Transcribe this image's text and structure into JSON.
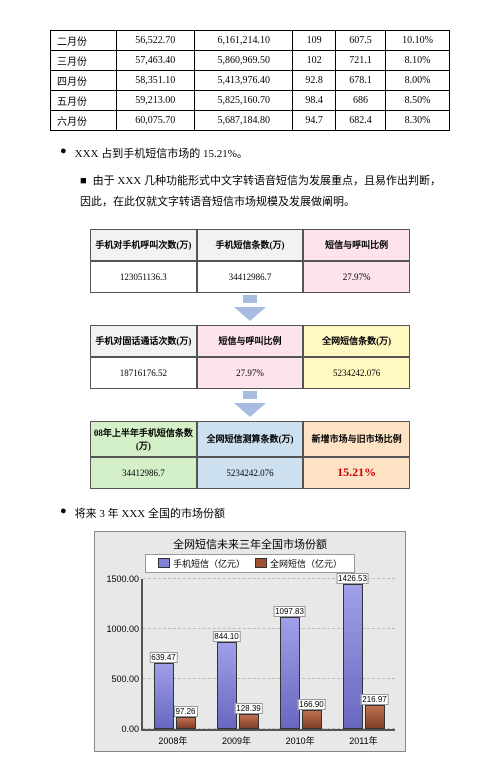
{
  "table": {
    "rows": [
      [
        "二月份",
        "56,522.70",
        "6,161,214.10",
        "109",
        "607.5",
        "10.10%"
      ],
      [
        "三月份",
        "57,463.40",
        "5,860,969.50",
        "102",
        "721.1",
        "8.10%"
      ],
      [
        "四月份",
        "58,351.10",
        "5,413,976.40",
        "92.8",
        "678.1",
        "8.00%"
      ],
      [
        "五月份",
        "59,213.00",
        "5,825,160.70",
        "98.4",
        "686",
        "8.50%"
      ],
      [
        "六月份",
        "60,075.70",
        "5,687,184.80",
        "94.7",
        "682.4",
        "8.30%"
      ]
    ]
  },
  "bullet1_a": "XXX 占到手机短信市场的 15.21%。",
  "bullet2": "由于 XXX 几种功能形式中文字转语音短信为发展重点，且易作出判断，因此，在此仅就文字转语音短信市场规模及发展做阐明。",
  "flow": {
    "r1h": [
      "手机对手机呼叫次数(万)",
      "手机短信条数(万)",
      "短信与呼叫比例"
    ],
    "r1d": [
      "123051136.3",
      "34412986.7",
      "27.97%"
    ],
    "r2h": [
      "手机对固话通话次数(万)",
      "短信与呼叫比例",
      "全网短信条数(万)"
    ],
    "r2d": [
      "18716176.52",
      "27.97%",
      "5234242.076"
    ],
    "r3h": [
      "08年上半年手机短信条数(万)",
      "全网短信测算条数(万)",
      "新增市场与旧市场比例"
    ],
    "r3d": [
      "34412986.7",
      "5234242.076",
      "15.21%"
    ]
  },
  "bullet3": "将来 3 年 XXX 全国的市场份额",
  "chart": {
    "title": "全网短信未来三年全国市场份额",
    "legend": [
      "手机短信（亿元）",
      "全网短信（亿元）"
    ],
    "categories": [
      "2008年",
      "2009年",
      "2010年",
      "2011年"
    ],
    "series1": [
      639.47,
      844.1,
      1097.83,
      1426.53
    ],
    "series2": [
      97.26,
      128.39,
      166.9,
      216.97
    ],
    "s1_labels": [
      "639.47",
      "844.10",
      "1097.83",
      "1426.53"
    ],
    "s2_labels": [
      "97.26",
      "128.39",
      "166.90",
      "216.97"
    ],
    "ylim": 1500,
    "yticks": [
      "0.00",
      "500.00",
      "1000.00",
      "1500.00"
    ],
    "colors": {
      "s1": "#8080d8",
      "s2": "#a05030",
      "bg": "#e8e8e8"
    }
  }
}
